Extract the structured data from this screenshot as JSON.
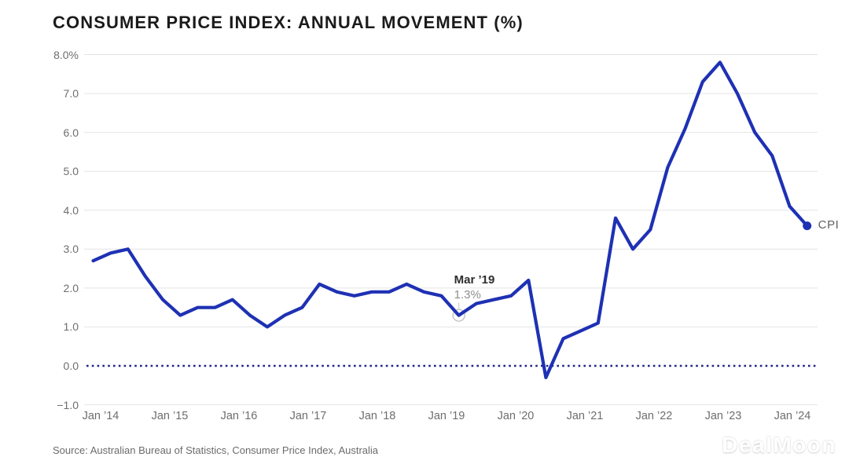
{
  "page": {
    "title": "CONSUMER PRICE INDEX: ANNUAL MOVEMENT (%)",
    "source": "Source: Australian Bureau of Statistics, Consumer Price Index, Australia",
    "watermark": "DealMoon"
  },
  "chart_data": {
    "type": "line",
    "title": "CONSUMER PRICE INDEX: ANNUAL MOVEMENT (%)",
    "unit": "%",
    "grid": "horizontal-on",
    "legend_position": "end-of-line-right",
    "y_axis": {
      "range": [
        -1,
        8
      ],
      "tick_values": [
        8,
        7,
        6,
        5,
        4,
        3,
        2,
        1,
        0,
        -1
      ],
      "tick_labels": [
        "8.0%",
        "7.0",
        "6.0",
        "5.0",
        "4.0",
        "3.0",
        "2.0",
        "1.0",
        "0.0",
        "−1.0"
      ],
      "zero_line_style": "dotted"
    },
    "x_axis": {
      "tick_labels": [
        "Jan ’14",
        "Jan ’15",
        "Jan ’16",
        "Jan ’17",
        "Jan ’18",
        "Jan ’19",
        "Jan ’20",
        "Jan ’21",
        "Jan ’22",
        "Jan ’23",
        "Jan ’24"
      ]
    },
    "series": [
      {
        "name": "CPI",
        "color": "#1e31b4",
        "x": [
          "Dec ’13",
          "Mar ’14",
          "Jun ’14",
          "Sep ’14",
          "Dec ’14",
          "Mar ’15",
          "Jun ’15",
          "Sep ’15",
          "Dec ’15",
          "Mar ’16",
          "Jun ’16",
          "Sep ’16",
          "Dec ’16",
          "Mar ’17",
          "Jun ’17",
          "Sep ’17",
          "Dec ’17",
          "Mar ’18",
          "Jun ’18",
          "Sep ’18",
          "Dec ’18",
          "Mar ’19",
          "Jun ’19",
          "Sep ’19",
          "Dec ’19",
          "Mar ’20",
          "Jun ’20",
          "Sep ’20",
          "Dec ’20",
          "Mar ’21",
          "Jun ’21",
          "Sep ’21",
          "Dec ’21",
          "Mar ’22",
          "Jun ’22",
          "Sep ’22",
          "Dec ’22",
          "Mar ’23",
          "Jun ’23",
          "Sep ’23",
          "Dec ’23",
          "Mar ’24"
        ],
        "values": [
          2.7,
          2.9,
          3.0,
          2.3,
          1.7,
          1.3,
          1.5,
          1.5,
          1.7,
          1.3,
          1.0,
          1.3,
          1.5,
          2.1,
          1.9,
          1.8,
          1.9,
          1.9,
          2.1,
          1.9,
          1.8,
          1.3,
          1.6,
          1.7,
          1.8,
          2.2,
          -0.3,
          0.7,
          0.9,
          1.1,
          3.8,
          3.0,
          3.5,
          5.1,
          6.1,
          7.3,
          7.8,
          7.0,
          6.0,
          5.4,
          4.1,
          3.6
        ]
      }
    ],
    "annotation": {
      "label": "Mar ’19",
      "value_label": "1.3%",
      "point_index": 21,
      "value": 1.3
    },
    "end_label": "CPI",
    "end_value": 3.6
  },
  "colors": {
    "line": "#1e31b4",
    "zero_line": "#1d2583",
    "grid": "#e4e4e4",
    "axis_text": "#6e6e6e",
    "title_text": "#1b1b1b",
    "annotation_label": "#2d2d2d",
    "annotation_value": "#8e8e8e",
    "annotation_ring": "#c4c4c4",
    "end_label_text": "#616161",
    "source_text": "#6b6b6b"
  }
}
